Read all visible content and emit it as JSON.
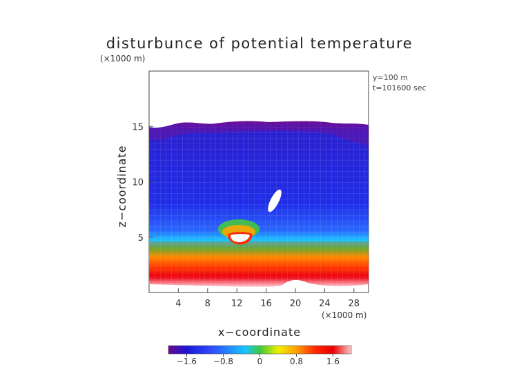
{
  "chart_data": {
    "type": "heatmap",
    "title": "disturbunce of potential temperature",
    "axis_unit_label_top": "(×1000 m)",
    "axis_unit_label_bottom": "(×1000 m)",
    "xlabel": "x−coordinate",
    "ylabel": "z−coordinate",
    "annotations": [
      "y=100 m",
      "t=101600 sec"
    ],
    "xlim": [
      0,
      30
    ],
    "ylim": [
      0,
      20
    ],
    "x_ticks": [
      4,
      8,
      12,
      16,
      20,
      24,
      28
    ],
    "y_ticks": [
      5,
      10,
      15
    ],
    "colorbar": {
      "range": [
        -2,
        2
      ],
      "ticks": [
        -1.6,
        -0.8,
        0,
        0.8,
        1.6
      ],
      "tick_labels": [
        "−1.6",
        "−0.8",
        "0",
        "0.8",
        "1.6"
      ],
      "colors": [
        "#6a0a8c",
        "#1a16d6",
        "#2f52ff",
        "#18c6ff",
        "#3cc83c",
        "#f0f000",
        "#ffa000",
        "#ff2a00",
        "#e80000",
        "#ffc8cc"
      ]
    },
    "layers": [
      {
        "z_range": [
          0,
          1
        ],
        "value": 1.9
      },
      {
        "z_range": [
          1,
          4
        ],
        "value": 1.3
      },
      {
        "z_range": [
          4,
          5
        ],
        "value": 0.8
      },
      {
        "z_range": [
          5,
          6.5
        ],
        "value": -0.2
      },
      {
        "z_range": [
          6.5,
          14.5
        ],
        "value": -1.2
      },
      {
        "z_range": [
          14.5,
          15.5
        ],
        "value": -1.8
      }
    ],
    "grid": true
  }
}
